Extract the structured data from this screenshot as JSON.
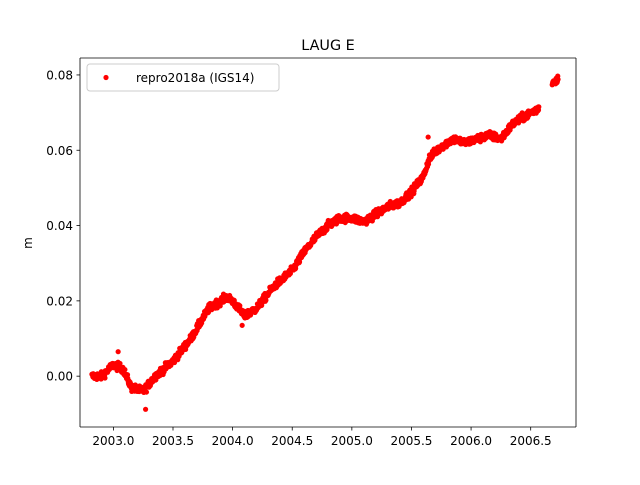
{
  "chart_data": {
    "type": "scatter",
    "title": "LAUG E",
    "xlabel": "",
    "ylabel": "m",
    "xlim": [
      2002.72,
      2006.88
    ],
    "ylim": [
      -0.0135,
      0.0845
    ],
    "xticks": [
      2003.0,
      2003.5,
      2004.0,
      2004.5,
      2005.0,
      2005.5,
      2006.0,
      2006.5
    ],
    "xtick_labels": [
      "2003.0",
      "2003.5",
      "2004.0",
      "2004.5",
      "2005.0",
      "2005.5",
      "2006.0",
      "2006.5"
    ],
    "yticks": [
      0.0,
      0.02,
      0.04,
      0.06,
      0.08
    ],
    "ytick_labels": [
      "0.00",
      "0.02",
      "0.04",
      "0.06",
      "0.08"
    ],
    "grid": false,
    "legend_position": "top-left",
    "series": [
      {
        "name": "repro2018a (IGS14)",
        "color": "#ff0000",
        "marker": "circle",
        "x_range": [
          2002.82,
          2006.73
        ],
        "gaps": [
          [
            2006.57,
            2006.68
          ]
        ],
        "trend": {
          "x": [
            2002.82,
            2002.9,
            2003.0,
            2003.08,
            2003.15,
            2003.25,
            2003.35,
            2003.5,
            2003.65,
            2003.8,
            2003.95,
            2004.0,
            2004.1,
            2004.2,
            2004.35,
            2004.5,
            2004.6,
            2004.7,
            2004.8,
            2004.9,
            2005.0,
            2005.1,
            2005.2,
            2005.3,
            2005.4,
            2005.5,
            2005.6,
            2005.65,
            2005.75,
            2005.85,
            2005.95,
            2006.05,
            2006.15,
            2006.25,
            2006.35,
            2006.45,
            2006.56,
            2006.68,
            2006.73
          ],
          "y": [
            0.0,
            0.0,
            0.003,
            0.002,
            -0.003,
            -0.004,
            0.0,
            0.004,
            0.01,
            0.018,
            0.021,
            0.02,
            0.016,
            0.018,
            0.024,
            0.028,
            0.033,
            0.037,
            0.04,
            0.042,
            0.042,
            0.041,
            0.043,
            0.045,
            0.046,
            0.049,
            0.053,
            0.058,
            0.061,
            0.063,
            0.062,
            0.063,
            0.064,
            0.063,
            0.067,
            0.069,
            0.071,
            0.078,
            0.079
          ]
        },
        "noise_amplitude": 0.001,
        "outliers": [
          [
            2003.04,
            0.0065
          ],
          [
            2003.27,
            -0.0088
          ],
          [
            2005.64,
            0.0635
          ],
          [
            2004.08,
            0.0135
          ]
        ]
      }
    ]
  }
}
